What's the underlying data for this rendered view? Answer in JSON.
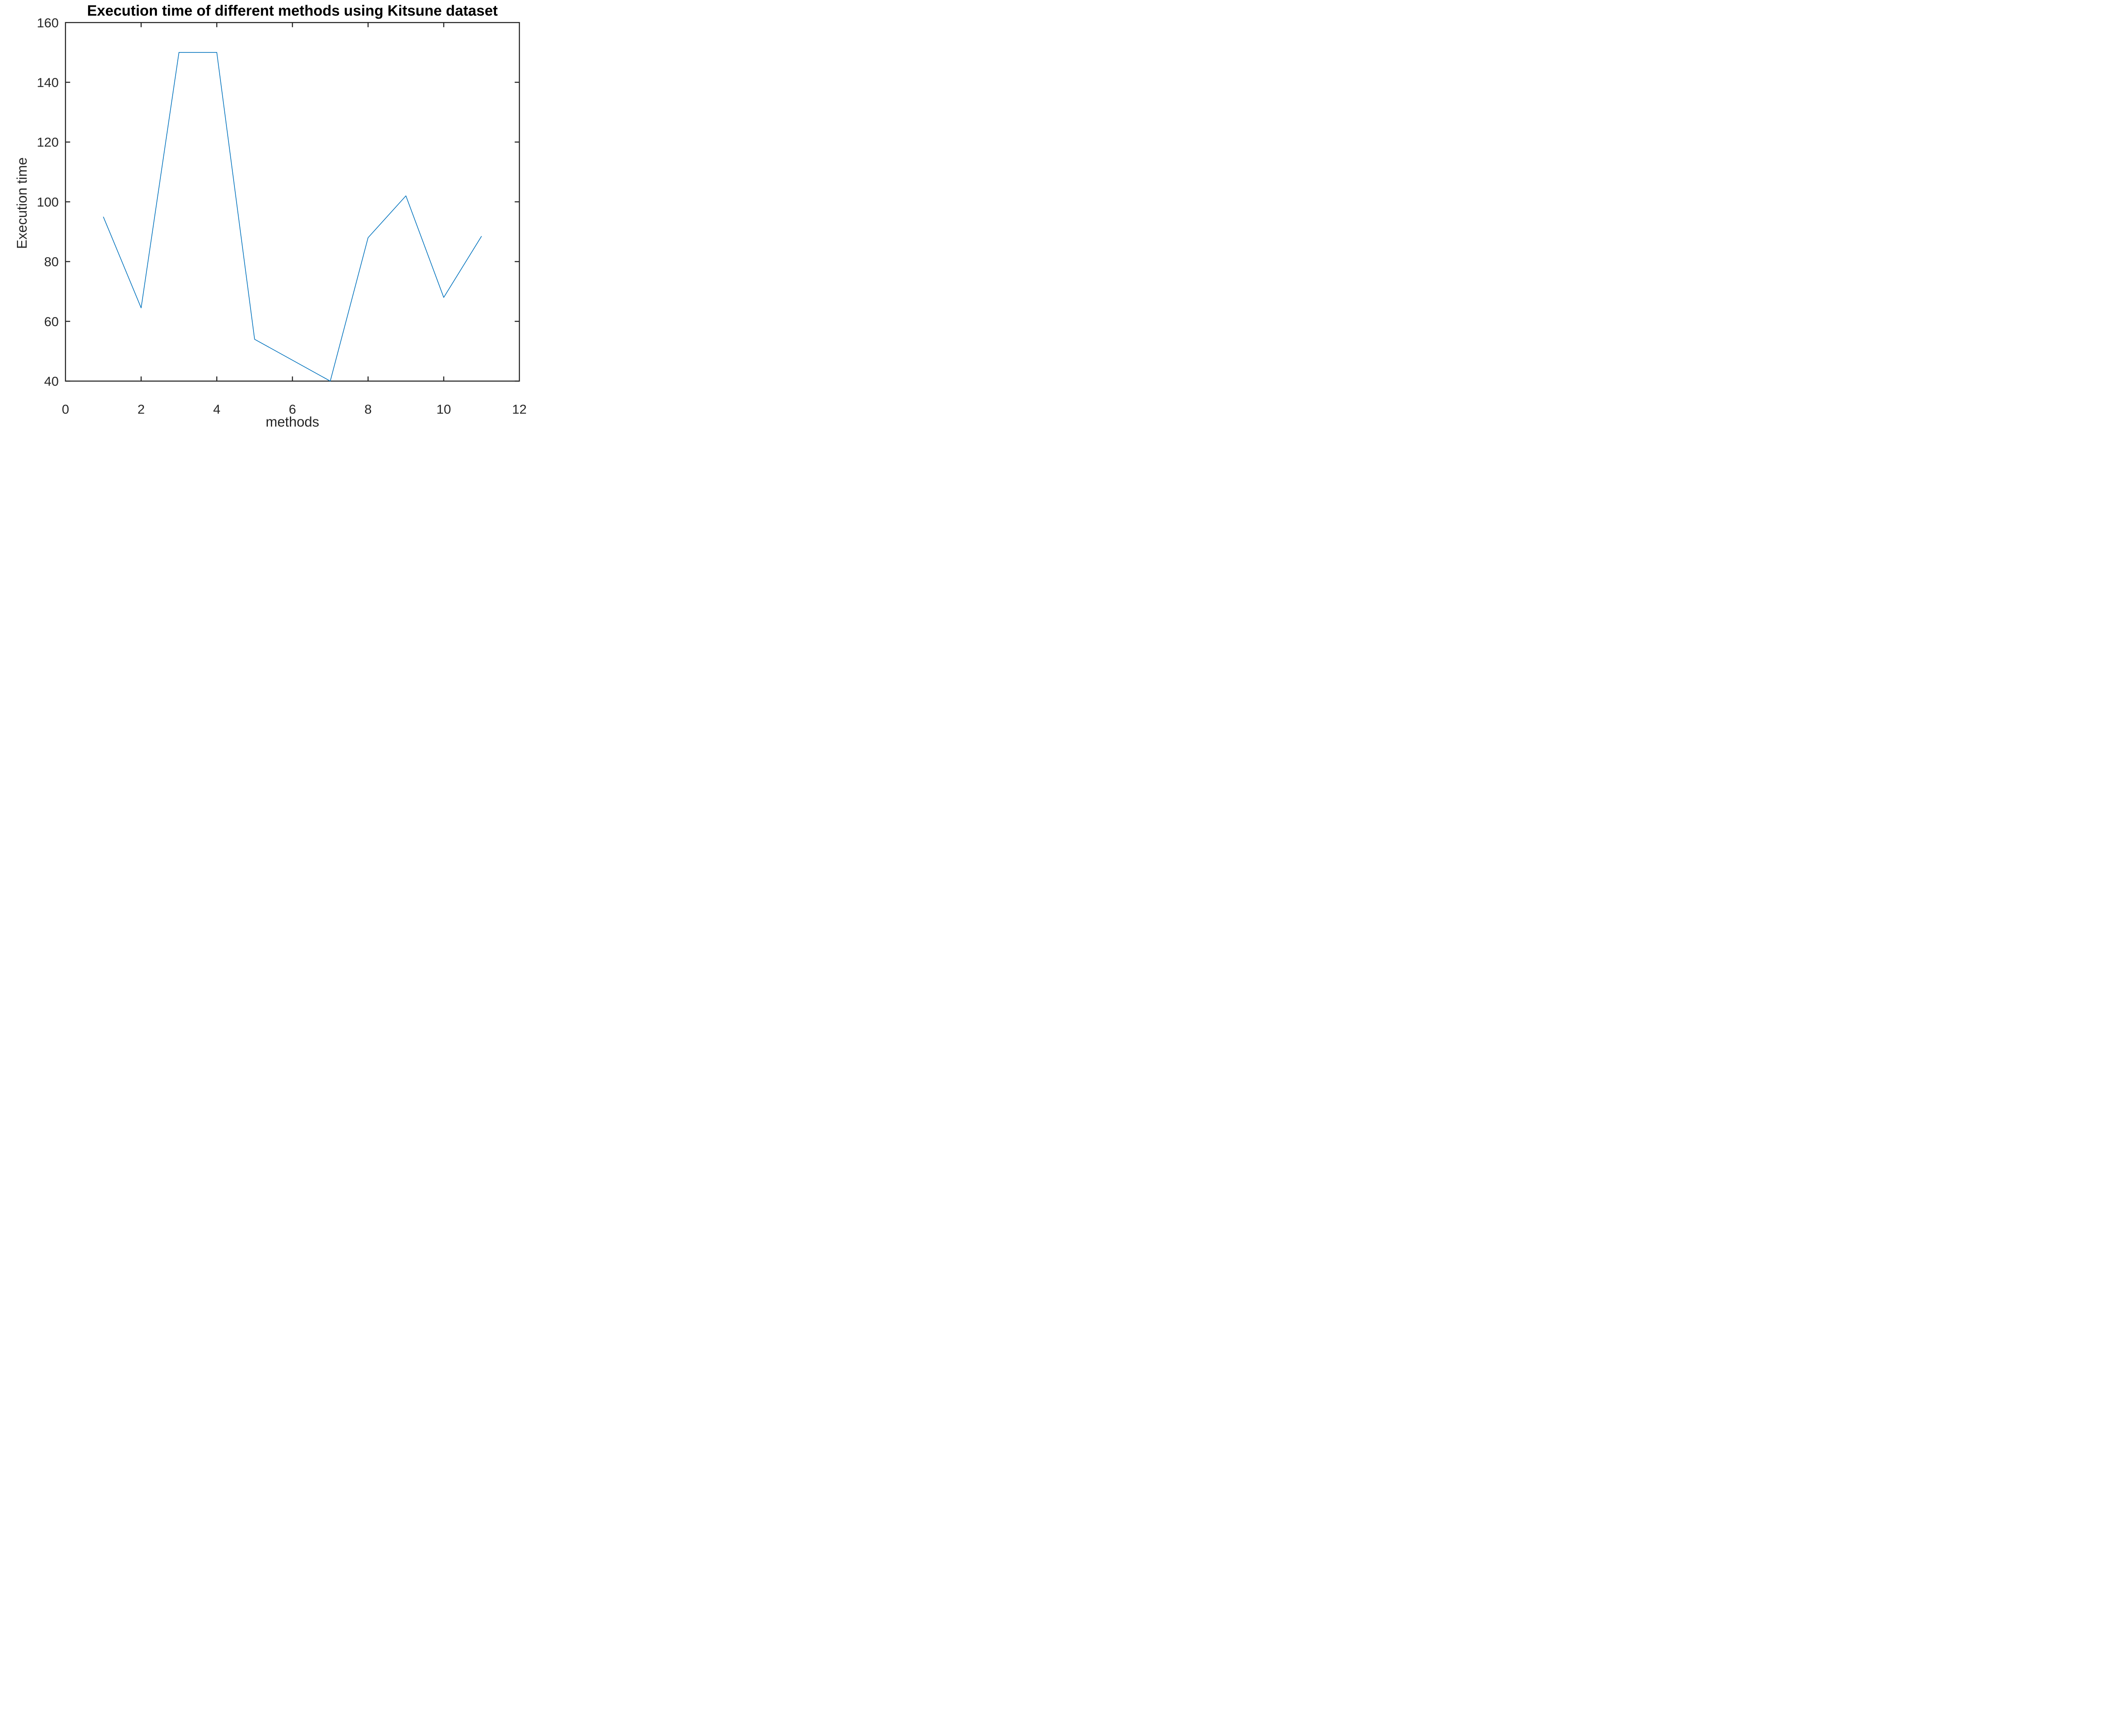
{
  "figure": {
    "background": "#ffffff"
  },
  "chart_data": {
    "type": "line",
    "title": "Execution time of different methods using Kitsune dataset",
    "xlabel": "methods",
    "ylabel": "Execution time",
    "x": [
      1,
      2,
      3,
      4,
      5,
      6,
      7,
      8,
      9,
      10,
      11
    ],
    "series": [
      {
        "name": "Execution time",
        "values": [
          95,
          64.5,
          150,
          150,
          54,
          47,
          40,
          88,
          102,
          68,
          88.5
        ]
      }
    ],
    "xlim": [
      0,
      12
    ],
    "ylim": [
      40,
      160
    ],
    "xticks": [
      0,
      2,
      4,
      6,
      8,
      10,
      12
    ],
    "yticks": [
      40,
      60,
      80,
      100,
      120,
      140,
      160
    ],
    "grid": false,
    "legend": "none",
    "line_color": "#0072BD",
    "axis_color": "#262626",
    "title_color": "#000000",
    "marker": "none"
  }
}
